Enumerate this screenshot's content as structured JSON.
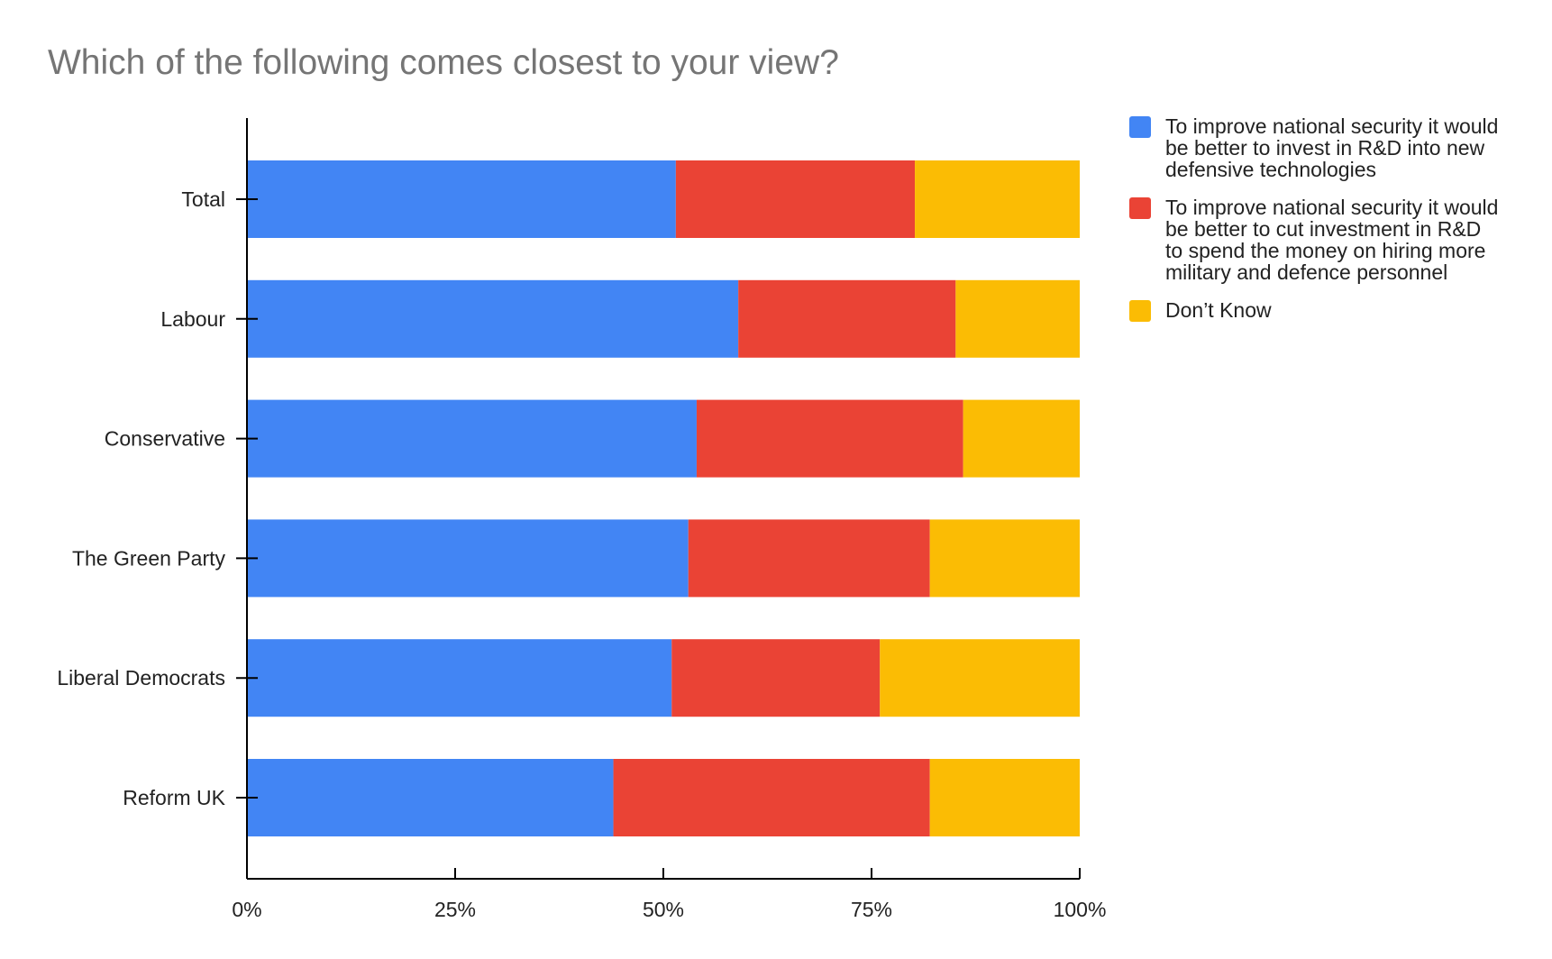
{
  "chart_data": {
    "type": "bar",
    "orientation": "horizontal",
    "stacked": true,
    "normalized": true,
    "title": "Which of the following comes closest to your view?",
    "xlabel": "",
    "ylabel": "",
    "xlim": [
      0,
      100
    ],
    "x_ticks": [
      "0%",
      "25%",
      "50%",
      "75%",
      "100%"
    ],
    "categories": [
      "Total",
      "Labour",
      "Conservative",
      "The Green Party",
      "Liberal Democrats",
      "Reform UK"
    ],
    "series": [
      {
        "name": "To improve national security it would be better to invest in R&D into new defensive technologies",
        "color": "#4285f4",
        "values": [
          51.5,
          59,
          54,
          53,
          51,
          44
        ]
      },
      {
        "name": "To improve national security it would be better to cut investment in R&D to spend the money on hiring more military and defence personnel",
        "color": "#ea4335",
        "values": [
          28.7,
          26.1,
          32,
          29,
          25,
          38
        ]
      },
      {
        "name": "Don’t Know",
        "color": "#fbbc04",
        "values": [
          19.8,
          14.9,
          14,
          18,
          24,
          18
        ]
      }
    ],
    "grid": false,
    "legend_position": "right"
  }
}
